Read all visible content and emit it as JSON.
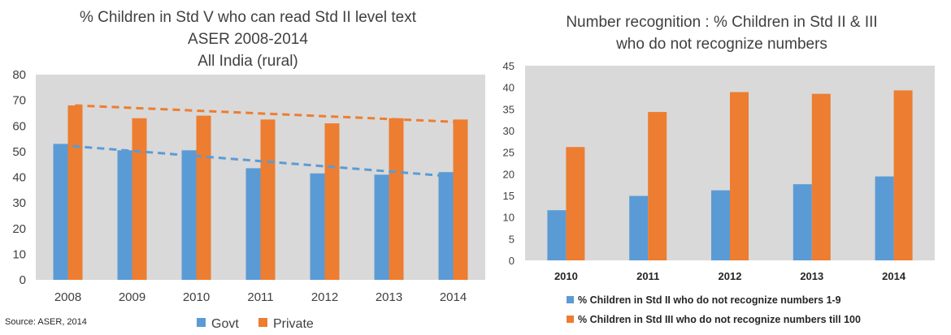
{
  "source_note": "Source: ASER, 2014",
  "chart_data": [
    {
      "type": "bar",
      "title_lines": [
        "% Children in Std V who can read Std II level text",
        "ASER 2008-2014",
        "All India (rural)"
      ],
      "categories": [
        "2008",
        "2009",
        "2010",
        "2011",
        "2012",
        "2013",
        "2014"
      ],
      "series": [
        {
          "name": "Govt",
          "color": "#5B9BD5",
          "values": [
            53,
            50.5,
            50.5,
            43.5,
            41.5,
            41,
            42
          ]
        },
        {
          "name": "Private",
          "color": "#ED7D31",
          "values": [
            68,
            63,
            64,
            62.5,
            61,
            63,
            62.5
          ]
        }
      ],
      "trendlines": [
        {
          "series": "Govt",
          "style": "dashed",
          "start": 52.5,
          "end": 40.5
        },
        {
          "series": "Private",
          "style": "dashed",
          "start": 68,
          "end": 61.5
        }
      ],
      "ylim": [
        0,
        80
      ],
      "yticks": [
        0,
        10,
        20,
        30,
        40,
        50,
        60,
        70,
        80
      ],
      "xlabel": "",
      "ylabel": "",
      "grid": false,
      "plot_background": "#D9D9D9",
      "legend": "bottom"
    },
    {
      "type": "bar",
      "title_lines": [
        "Number recognition : % Children in Std II & III",
        "who do not recognize numbers"
      ],
      "categories": [
        "2010",
        "2011",
        "2012",
        "2013",
        "2014"
      ],
      "series": [
        {
          "name": "% Children in Std II who do not recognize numbers 1-9",
          "color": "#5B9BD5",
          "values": [
            11.6,
            14.9,
            16.2,
            17.6,
            19.4
          ]
        },
        {
          "name": "% Children in Std III who do not recognize numbers till 100",
          "color": "#ED7D31",
          "values": [
            26.2,
            34.3,
            38.9,
            38.5,
            39.3
          ]
        }
      ],
      "ylim": [
        0,
        45
      ],
      "yticks": [
        0,
        5,
        10,
        15,
        20,
        25,
        30,
        35,
        40,
        45
      ],
      "xlabel": "",
      "ylabel": "",
      "grid": false,
      "plot_background": "#D9D9D9",
      "legend": "bottom"
    }
  ]
}
